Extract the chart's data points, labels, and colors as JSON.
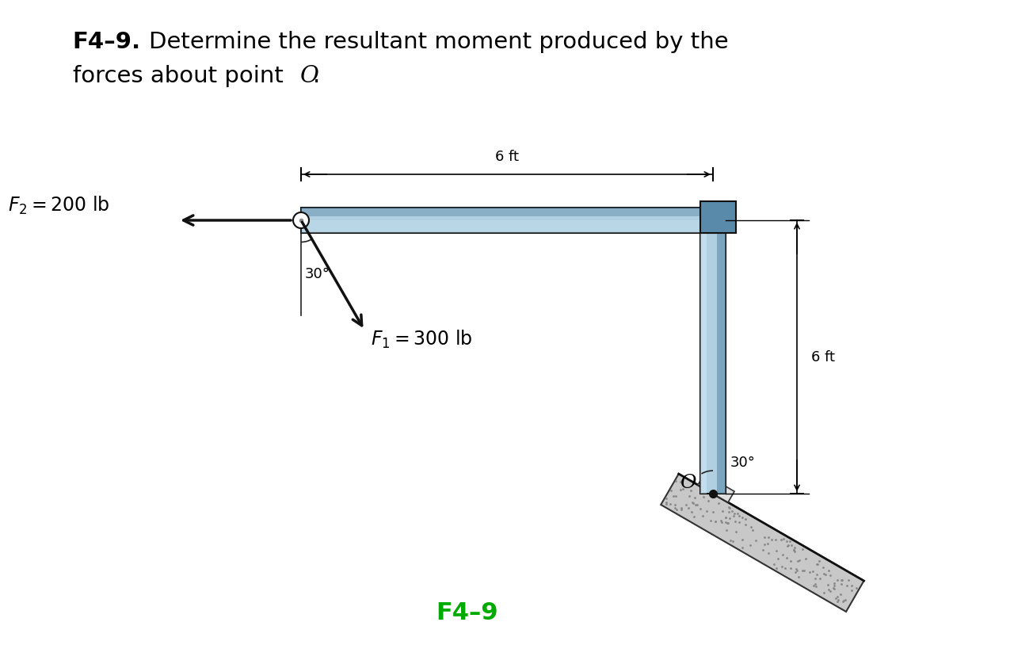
{
  "title_bold": "F4–9.",
  "title_rest": "  Determine the resultant moment produced by the",
  "title_line2": "forces about point ",
  "title_O": "O",
  "title_dot": ".",
  "title_fontsize": 21,
  "label_fontsize": 17,
  "fig_bg": "#ffffff",
  "beam_color_light": "#b0cfe0",
  "beam_color_mid": "#8ab0c8",
  "beam_color_dark": "#5a8aaa",
  "beam_outline": "#111111",
  "ground_color": "#c0c0c0",
  "arrow_color": "#111111",
  "point_O_label": "O",
  "F1_label": "$F_1 = 300$ lb",
  "F2_label": "$F_2 = 200$ lb",
  "angle1_label": "30°",
  "angle2_label": "30°",
  "dim_6ft_top": "6 ft",
  "dim_6ft_right": "6 ft",
  "figure_label": "F4–9",
  "figure_label_color": "#00aa00"
}
